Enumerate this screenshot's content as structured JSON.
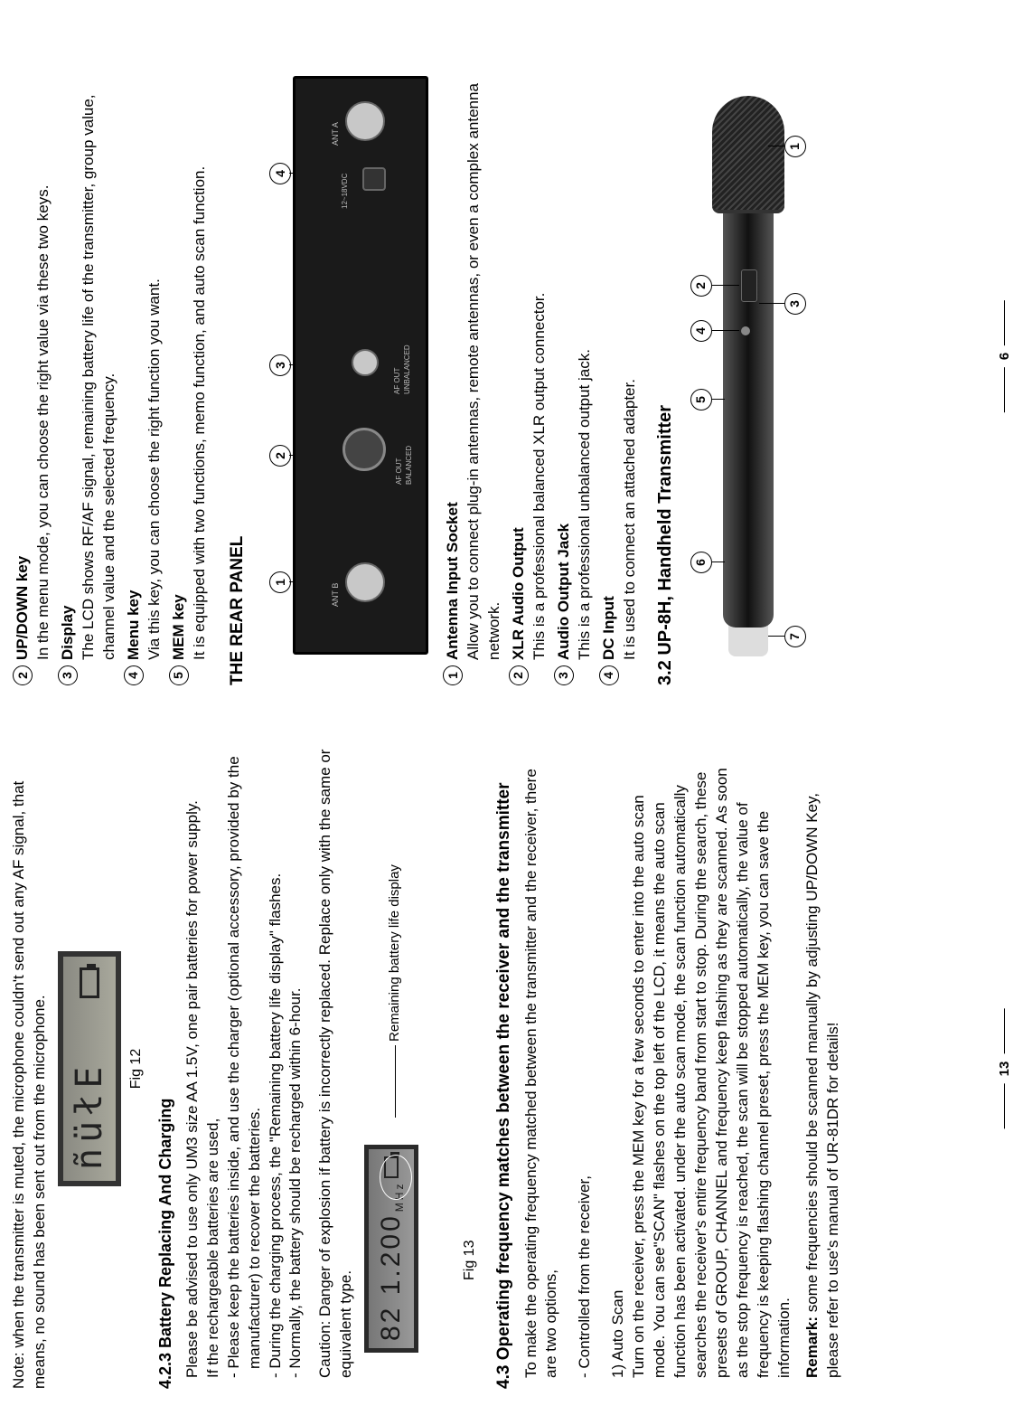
{
  "left": {
    "note": "Note: when the transmitter is muted, the microphone couldn't send out any AF signal, that means, no sound has been sent out from the microphone.",
    "lcd1_text": "ñüłE",
    "fig12": "Fig 12",
    "sec423_title": "4.2.3 Battery Replacing And Charging",
    "p1": "Please be advised to use only UM3 size AA 1.5V, one pair batteries for power supply.",
    "p2": "If the rechargeable batteries are used,",
    "b1": "- Please keep the batteries inside, and use the charger (optional accessory, provided by the manufacturer) to recover the batteries.",
    "b2": "- During the charging process, the \"Remaining battery life display\" flashes.",
    "b3": "- Normally, the battery should be recharged within 6-hour.",
    "caution": "Caution: Danger of explosion if battery is incorrectly replaced. Replace only with the same or equivalent type.",
    "lcd2_text": "82 1.200",
    "lcd2_suffix": "MHz",
    "callout_batt": "Remaining battery life display",
    "fig13": "Fig 13",
    "sec43_title": "4.3 Operating frequency matches between the receiver and the transmitter",
    "p43_1": "To make the operating frequency matched between the transmitter and the receiver, there are two options,",
    "p43_2": "- Controlled from the receiver,",
    "p43_3_h": "1) Auto Scan",
    "p43_3": "Turn on the  receiver,  press the MEM  key for a few seconds to enter into the auto scan mode. You can see\"SCAN\" flashes on the top left of the  LCD, it means  the auto scan  function has been activated. under the auto scan mode, the scan function automatically searches the receiver's entire frequency band from start to stop. During the search, these presets of GROUP, CHANNEL and frequency keep flashing as they are scanned. As soon as the stop frequency is reached, the scan will be stopped automatically, the value of frequency is keeping flashing channel preset, press the MEM key, you can save the information.",
    "remark_label": "Remark:",
    "remark_text": " some frequencies should be scanned manually by adjusting UP/DOWN Key, please refer to use's manual of UR-81DR for details!",
    "page_num": "13"
  },
  "right": {
    "items_front": [
      {
        "n": "2",
        "label": "UP/DOWN key",
        "text": "In the menu mode, you can choose the right value via these two keys."
      },
      {
        "n": "3",
        "label": "Display",
        "text": "The LCD shows RF/AF signal, remaining battery life of the transmitter, group value, channel value and the selected frequency."
      },
      {
        "n": "4",
        "label": "Menu key",
        "text": "Via this key, you can choose the right function you want."
      },
      {
        "n": "5",
        "label": "MEM key",
        "text": "It is equipped with two functions, memo function, and auto scan function."
      }
    ],
    "rear_title": "THE REAR PANEL",
    "rear_labels": [
      "1",
      "2",
      "3",
      "4"
    ],
    "items_rear": [
      {
        "n": "1",
        "label": "Antenna Input Socket",
        "text": "Allow you to connect plug-in antennas, remote antennas, or even a complex antenna network."
      },
      {
        "n": "2",
        "label": "XLR Audio Output",
        "text": "This is a professional balanced XLR output connector."
      },
      {
        "n": "3",
        "label": "Audio Output Jack",
        "text": "This is a professional unbalanced output jack."
      },
      {
        "n": "4",
        "label": "DC Input",
        "text": "It is used to connect an attached adapter."
      }
    ],
    "sec32_title": "3.2 UP-8H, Handheld Transmitter",
    "mic_labels": [
      "1",
      "2",
      "3",
      "4",
      "5",
      "6",
      "7"
    ],
    "page_num": "6"
  },
  "colors": {
    "text": "#000000",
    "bg": "#ffffff",
    "panel": "#1a1a1a",
    "lcd_bg": "#9a9a90"
  }
}
